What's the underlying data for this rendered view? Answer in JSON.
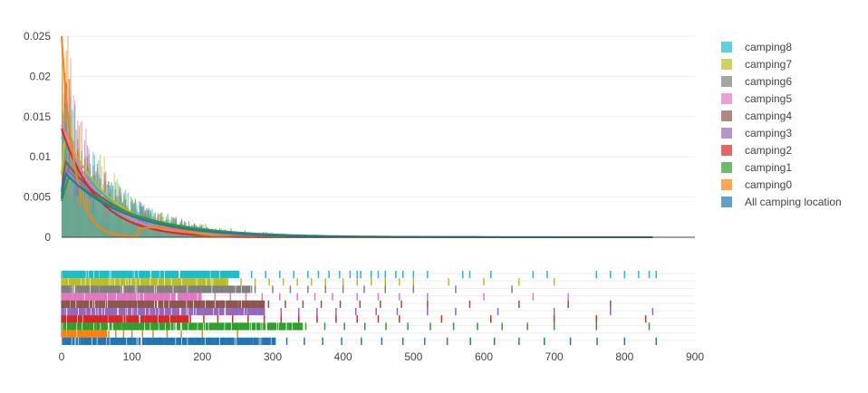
{
  "chart_data": {
    "type": "histogram-density-rug",
    "title": "",
    "xlabel": "",
    "ylabel": "",
    "xlim": [
      0,
      900
    ],
    "ylim": [
      0,
      0.025
    ],
    "x_ticks": [
      0,
      100,
      200,
      300,
      400,
      500,
      600,
      700,
      800,
      900
    ],
    "y_ticks": [
      "0",
      "0.005",
      "0.01",
      "0.015",
      "0.02",
      "0.025"
    ],
    "y_tick_values": [
      0,
      0.005,
      0.01,
      0.015,
      0.02,
      0.025
    ],
    "grid": true,
    "legend_position": "right",
    "series": [
      {
        "name": "camping8",
        "color": "#17becf",
        "peak_x": 0,
        "peak_y": 0.0125,
        "decay": 70,
        "max_x": 845,
        "rug": [
          2,
          5,
          8,
          12,
          18,
          25,
          31,
          40,
          48,
          55,
          63,
          72,
          80,
          90,
          100,
          112,
          125,
          138,
          150,
          165,
          180,
          195,
          210,
          230,
          250,
          270,
          290,
          310,
          330,
          350,
          365,
          380,
          395,
          410,
          420,
          425,
          440,
          450,
          460,
          475,
          485,
          500,
          520,
          570,
          580,
          610,
          670,
          690,
          760,
          780,
          800,
          820,
          835,
          845
        ]
      },
      {
        "name": "camping7",
        "color": "#bcbd22",
        "peak_x": 5,
        "peak_y": 0.013,
        "decay": 65,
        "max_x": 700,
        "rug": [
          3,
          7,
          11,
          16,
          22,
          29,
          37,
          45,
          54,
          63,
          73,
          84,
          96,
          108,
          121,
          135,
          150,
          166,
          183,
          200,
          218,
          236,
          255,
          275,
          295,
          315,
          335,
          355,
          375,
          400,
          420,
          440,
          460,
          480,
          500,
          550,
          600,
          650,
          700
        ]
      },
      {
        "name": "camping6",
        "color": "#7f7f7f",
        "peak_x": 10,
        "peak_y": 0.009,
        "decay": 75,
        "max_x": 640,
        "rug": [
          4,
          9,
          14,
          20,
          27,
          35,
          43,
          52,
          62,
          73,
          85,
          97,
          110,
          124,
          139,
          155,
          172,
          190,
          210,
          230,
          252,
          275,
          300,
          325,
          350,
          375,
          400,
          430,
          460,
          500,
          560,
          640
        ]
      },
      {
        "name": "camping5",
        "color": "#e377c2",
        "peak_x": 0,
        "peak_y": 0.014,
        "decay": 55,
        "max_x": 720,
        "rug": [
          2,
          6,
          10,
          15,
          21,
          28,
          36,
          44,
          53,
          63,
          74,
          86,
          99,
          113,
          128,
          144,
          161,
          179,
          198,
          218,
          240,
          262,
          285,
          310,
          335,
          360,
          385,
          420,
          450,
          480,
          520,
          600,
          670,
          720
        ]
      },
      {
        "name": "camping4",
        "color": "#8c564b",
        "peak_x": 5,
        "peak_y": 0.0095,
        "decay": 80,
        "max_x": 780,
        "rug": [
          3,
          8,
          13,
          19,
          26,
          34,
          42,
          51,
          61,
          72,
          84,
          96,
          109,
          123,
          138,
          154,
          171,
          189,
          208,
          228,
          249,
          271,
          294,
          318,
          343,
          369,
          396,
          424,
          453,
          483,
          520,
          580,
          650,
          720,
          780
        ]
      },
      {
        "name": "camping3",
        "color": "#9467bd",
        "peak_x": 8,
        "peak_y": 0.0085,
        "decay": 80,
        "max_x": 840,
        "rug": [
          4,
          9,
          15,
          21,
          28,
          36,
          45,
          55,
          66,
          78,
          90,
          103,
          117,
          132,
          148,
          165,
          183,
          202,
          222,
          243,
          265,
          288,
          312,
          337,
          363,
          390,
          418,
          447,
          477,
          520,
          560,
          620,
          700,
          780,
          840
        ]
      },
      {
        "name": "camping2",
        "color": "#d62728",
        "peak_x": 0,
        "peak_y": 0.0135,
        "decay": 50,
        "max_x": 830,
        "rug": [
          1,
          5,
          9,
          14,
          19,
          25,
          32,
          40,
          48,
          57,
          67,
          78,
          90,
          103,
          117,
          132,
          148,
          165,
          183,
          202,
          222,
          243,
          265,
          288,
          312,
          337,
          363,
          390,
          420,
          450,
          480,
          540,
          610,
          700,
          760,
          830
        ]
      },
      {
        "name": "camping1",
        "color": "#2ca02c",
        "peak_x": 10,
        "peak_y": 0.0075,
        "decay": 95,
        "max_x": 835,
        "rug": [
          5,
          11,
          17,
          24,
          32,
          41,
          51,
          62,
          74,
          87,
          101,
          116,
          132,
          149,
          167,
          186,
          206,
          227,
          249,
          272,
          296,
          321,
          347,
          374,
          402,
          431,
          461,
          492,
          524,
          557,
          591,
          626,
          662,
          700,
          760,
          835
        ]
      },
      {
        "name": "camping0",
        "color": "#ff7f0e",
        "peak_x": 0,
        "peak_y": 0.025,
        "decay": 18,
        "max_x": 250,
        "rug": [
          1,
          3,
          5,
          8,
          11,
          15,
          19,
          24,
          29,
          35,
          42,
          50,
          58,
          67,
          77,
          88,
          100,
          115,
          130,
          150,
          170,
          200,
          250
        ]
      },
      {
        "name": "All camping location",
        "color": "#1f77b4",
        "peak_x": 5,
        "peak_y": 0.008,
        "decay": 85,
        "max_x": 845,
        "rug": [
          2,
          5,
          8,
          12,
          16,
          21,
          27,
          33,
          40,
          48,
          56,
          65,
          75,
          86,
          98,
          111,
          125,
          140,
          156,
          173,
          191,
          210,
          230,
          251,
          273,
          296,
          320,
          345,
          371,
          398,
          426,
          455,
          485,
          516,
          548,
          581,
          615,
          650,
          686,
          723,
          761,
          800,
          845
        ]
      }
    ]
  }
}
